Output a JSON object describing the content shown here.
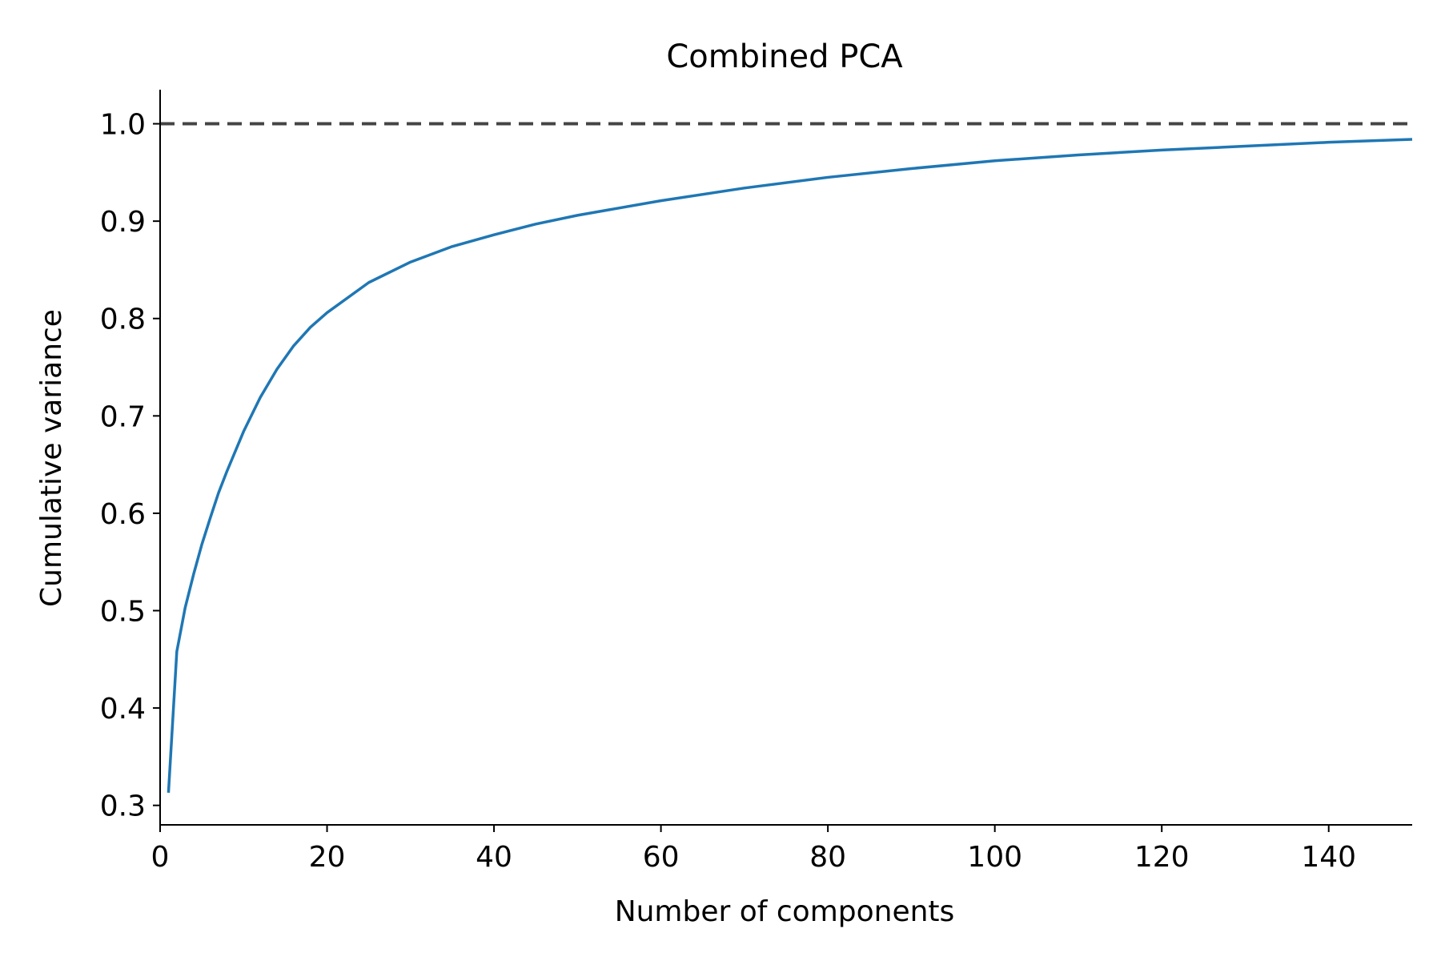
{
  "chart_data": {
    "type": "line",
    "title": "Combined PCA",
    "xlabel": "Number of components",
    "ylabel": "Cumulative variance",
    "xlim": [
      0,
      150
    ],
    "ylim": [
      0.28,
      1.035
    ],
    "x_ticks": [
      0,
      20,
      40,
      60,
      80,
      100,
      120,
      140
    ],
    "x_tick_labels": [
      "0",
      "20",
      "40",
      "60",
      "80",
      "100",
      "120",
      "140"
    ],
    "y_ticks": [
      0.3,
      0.4,
      0.5,
      0.6,
      0.7,
      0.8,
      0.9,
      1.0
    ],
    "y_tick_labels": [
      "0.3",
      "0.4",
      "0.5",
      "0.6",
      "0.7",
      "0.8",
      "0.9",
      "1.0"
    ],
    "grid": false,
    "series": [
      {
        "color": "#1f77b4",
        "x": [
          1,
          2,
          3,
          4,
          5,
          6,
          7,
          8,
          10,
          12,
          14,
          16,
          18,
          20,
          25,
          30,
          35,
          40,
          45,
          50,
          60,
          70,
          80,
          90,
          100,
          110,
          120,
          130,
          140,
          150
        ],
        "y": [
          0.313,
          0.458,
          0.503,
          0.537,
          0.568,
          0.595,
          0.621,
          0.643,
          0.684,
          0.719,
          0.748,
          0.772,
          0.791,
          0.806,
          0.837,
          0.858,
          0.874,
          0.886,
          0.897,
          0.906,
          0.921,
          0.934,
          0.945,
          0.954,
          0.962,
          0.968,
          0.973,
          0.977,
          0.981,
          0.984
        ]
      }
    ],
    "reference_line": {
      "y": 1.0,
      "style": "dashed",
      "color": "#444444"
    }
  },
  "colors": {
    "line": "#1f77b4",
    "reference": "#444444",
    "axes": "#000000",
    "background": "#ffffff"
  }
}
